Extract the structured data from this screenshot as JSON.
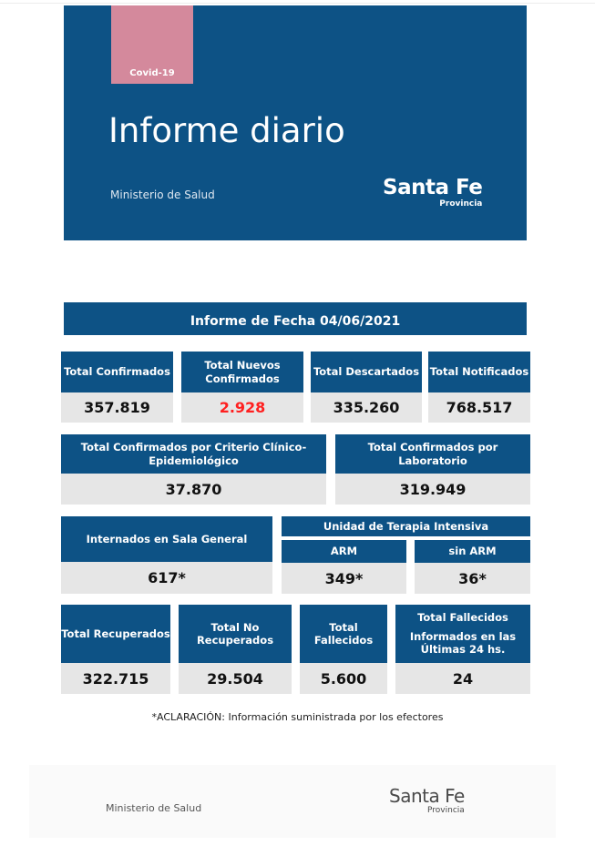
{
  "cover": {
    "tag": "Covid-19",
    "title": "Informe diario",
    "ministry": "Ministerio de Salud",
    "logo_main": "Santa Fe",
    "logo_sub": "Provincia"
  },
  "report_date_label": "Informe de Fecha 04/06/2021",
  "row1": [
    {
      "label": "Total Confirmados",
      "value": "357.819"
    },
    {
      "label": "Total Nuevos Confirmados",
      "value": "2.928",
      "highlight_color": "#ff2020"
    },
    {
      "label": "Total Descartados",
      "value": "335.260"
    },
    {
      "label": "Total Notificados",
      "value": "768.517"
    }
  ],
  "row2": [
    {
      "label": "Total Confirmados por Criterio Clínico-Epidemiológico",
      "value": "37.870"
    },
    {
      "label": "Total Confirmados por Laboratorio",
      "value": "319.949"
    }
  ],
  "row3": {
    "general": {
      "label": "Internados en Sala General",
      "value": "617*"
    },
    "uti_label": "Unidad de Terapia Intensiva",
    "arm": {
      "label": "ARM",
      "value": "349*"
    },
    "sin_arm": {
      "label": "sin ARM",
      "value": "36*"
    }
  },
  "row4": [
    {
      "label": "Total Recuperados",
      "value": "322.715"
    },
    {
      "label": "Total No Recuperados",
      "value": "29.504"
    },
    {
      "label": "Total Fallecidos",
      "value": "5.600"
    },
    {
      "label_line1": "Total Fallecidos",
      "label_line2": "Informados en las Últimas 24 hs.",
      "value": "24"
    }
  ],
  "note": "*ACLARACIÓN: Información suministrada por los efectores",
  "footer": {
    "ministry": "Ministerio de Salud",
    "logo_main": "Santa Fe",
    "logo_sub": "Provincia"
  },
  "colors": {
    "primary": "#0d5285",
    "tag": "#d4899c",
    "value_bg": "#e6e6e6",
    "alert": "#ff2020"
  }
}
